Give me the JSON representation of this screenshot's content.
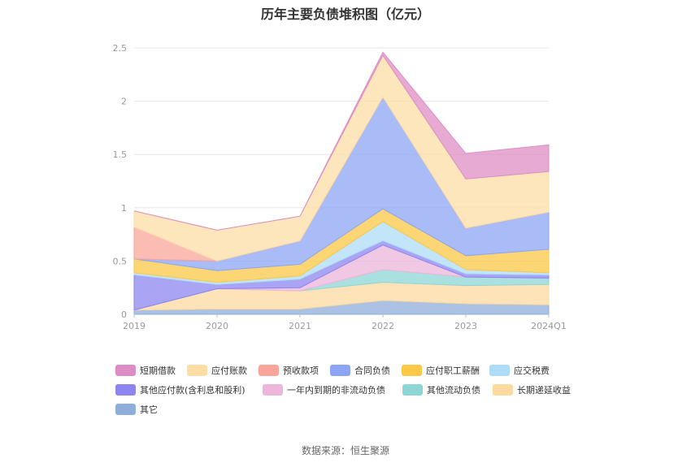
{
  "chart_data": {
    "type": "area",
    "stacked": true,
    "title": "历年主要负债堆积图（亿元）",
    "categories": [
      "2019",
      "2020",
      "2021",
      "2022",
      "2023",
      "2024Q1"
    ],
    "ylim": [
      0,
      2.5
    ],
    "yticks": [
      "0",
      "0.5",
      "1",
      "1.5",
      "2",
      "2.5"
    ],
    "grid": true,
    "legend_position": "bottom",
    "series": [
      {
        "name": "其它",
        "color": "#8FAEDC",
        "values": [
          0.04,
          0.05,
          0.05,
          0.13,
          0.1,
          0.09
        ]
      },
      {
        "name": "长期递延收益",
        "color": "#FDD9A0",
        "values": [
          0.0,
          0.19,
          0.17,
          0.17,
          0.17,
          0.19
        ]
      },
      {
        "name": "其他流动负债",
        "color": "#8ED6D6",
        "values": [
          0.0,
          0.0,
          0.0,
          0.12,
          0.08,
          0.06
        ]
      },
      {
        "name": "一年内到期的非流动负债",
        "color": "#ECB5DA",
        "values": [
          0.0,
          0.0,
          0.03,
          0.23,
          0.0,
          0.0
        ]
      },
      {
        "name": "其他应付款(含利息和股利)",
        "color": "#8C85F0",
        "values": [
          0.33,
          0.04,
          0.08,
          0.04,
          0.03,
          0.03
        ]
      },
      {
        "name": "应交税费",
        "color": "#AEDCF8",
        "values": [
          0.02,
          0.02,
          0.03,
          0.18,
          0.04,
          0.02
        ]
      },
      {
        "name": "应付职工薪酬",
        "color": "#FBC847",
        "values": [
          0.13,
          0.11,
          0.11,
          0.12,
          0.13,
          0.22
        ]
      },
      {
        "name": "合同负债",
        "color": "#8CA5F5",
        "values": [
          0.0,
          0.09,
          0.22,
          1.05,
          0.26,
          0.35
        ]
      },
      {
        "name": "预收款项",
        "color": "#F9A59B",
        "values": [
          0.3,
          0.0,
          0.0,
          0.0,
          0.0,
          0.0
        ]
      },
      {
        "name": "应付账款",
        "color": "#FCDDA6",
        "values": [
          0.15,
          0.29,
          0.23,
          0.39,
          0.46,
          0.38
        ]
      },
      {
        "name": "短期借款",
        "color": "#DD8DC4",
        "values": [
          0.0,
          0.0,
          0.0,
          0.03,
          0.24,
          0.25
        ]
      }
    ]
  },
  "legend": [
    {
      "label": "短期借款",
      "color": "#DD8DC4"
    },
    {
      "label": "应付账款",
      "color": "#FCDDA6"
    },
    {
      "label": "预收款项",
      "color": "#F9A59B"
    },
    {
      "label": "合同负债",
      "color": "#8CA5F5"
    },
    {
      "label": "应付职工薪酬",
      "color": "#FBC847"
    },
    {
      "label": "应交税费",
      "color": "#AEDCF8"
    },
    {
      "label": "其他应付款(含利息和股利)",
      "color": "#8C85F0"
    },
    {
      "label": "一年内到期的非流动负债",
      "color": "#ECB5DA"
    },
    {
      "label": "其他流动负债",
      "color": "#8ED6D6"
    },
    {
      "label": "长期递延收益",
      "color": "#FDD9A0"
    },
    {
      "label": "其它",
      "color": "#8FAEDC"
    }
  ],
  "source": "数据来源：恒生聚源"
}
